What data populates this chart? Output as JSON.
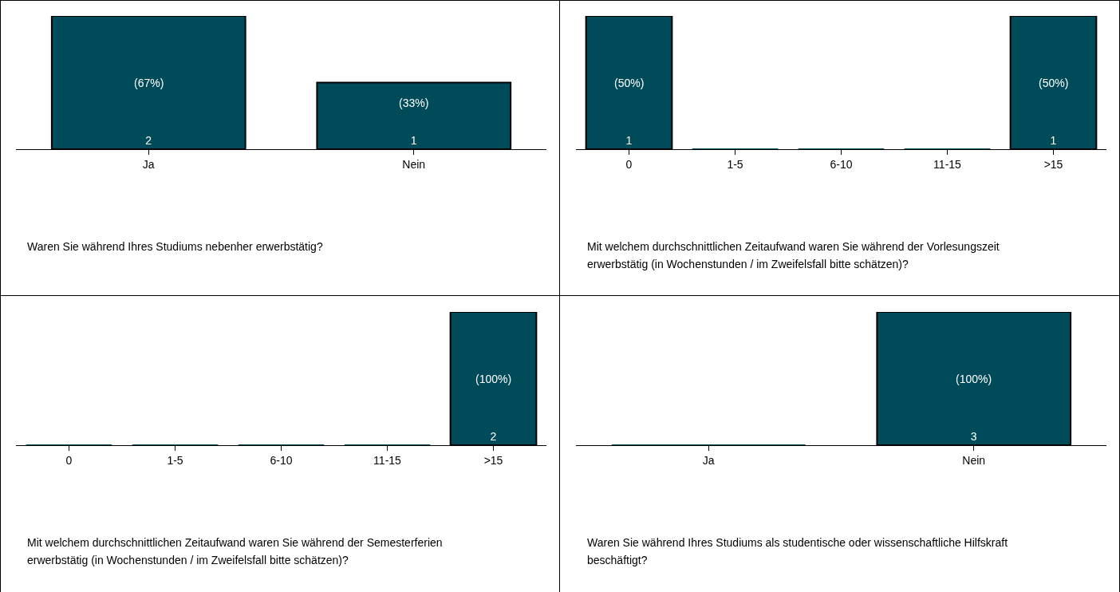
{
  "chart_data": [
    {
      "type": "bar",
      "title": "Waren Sie während Ihres Studiums nebenher erwerbstätig?",
      "categories": [
        "Ja",
        "Nein"
      ],
      "values": [
        2,
        1
      ],
      "color": "#004b5a",
      "value_labels": [
        "2",
        "1"
      ],
      "annotations": [
        "(67%)",
        "(33%)"
      ],
      "grid": false,
      "legend": false
    },
    {
      "type": "bar",
      "title": "Mit welchem durchschnittlichen Zeitaufwand waren Sie während der Vorlesungszeit erwerbstätig (in Wochenstunden / im Zweifelsfall bitte schätzen)?",
      "categories": [
        "0",
        "1-5",
        "6-10",
        "11-15",
        ">15"
      ],
      "values": [
        1,
        0,
        0,
        0,
        1
      ],
      "color": "#004b5a",
      "value_labels": [
        "1",
        null,
        null,
        null,
        "1"
      ],
      "annotations": [
        "(50%)",
        "(50%)"
      ],
      "grid": false,
      "legend": false
    },
    {
      "type": "bar",
      "title": "Mit welchem durchschnittlichen Zeitaufwand waren Sie während der Semesterferien erwerbstätig (in Wochenstunden / im Zweifelsfall bitte schätzen)?",
      "categories": [
        "0",
        "1-5",
        "6-10",
        "11-15",
        ">15"
      ],
      "values": [
        0,
        0,
        0,
        0,
        2
      ],
      "color": "#004b5a",
      "value_labels": [
        null,
        null,
        null,
        null,
        "2"
      ],
      "annotations": [
        "(100%)"
      ],
      "grid": false,
      "legend": false
    },
    {
      "type": "bar",
      "title": "Waren Sie während Ihres Studiums als studentische oder wissenschaftliche Hilfskraft beschäftigt?",
      "categories": [
        "Ja",
        "Nein"
      ],
      "values": [
        0,
        3
      ],
      "color": "#004b5a",
      "value_labels": [
        null,
        "3"
      ],
      "annotations": [
        "(100%)"
      ],
      "grid": false,
      "legend": false
    }
  ]
}
